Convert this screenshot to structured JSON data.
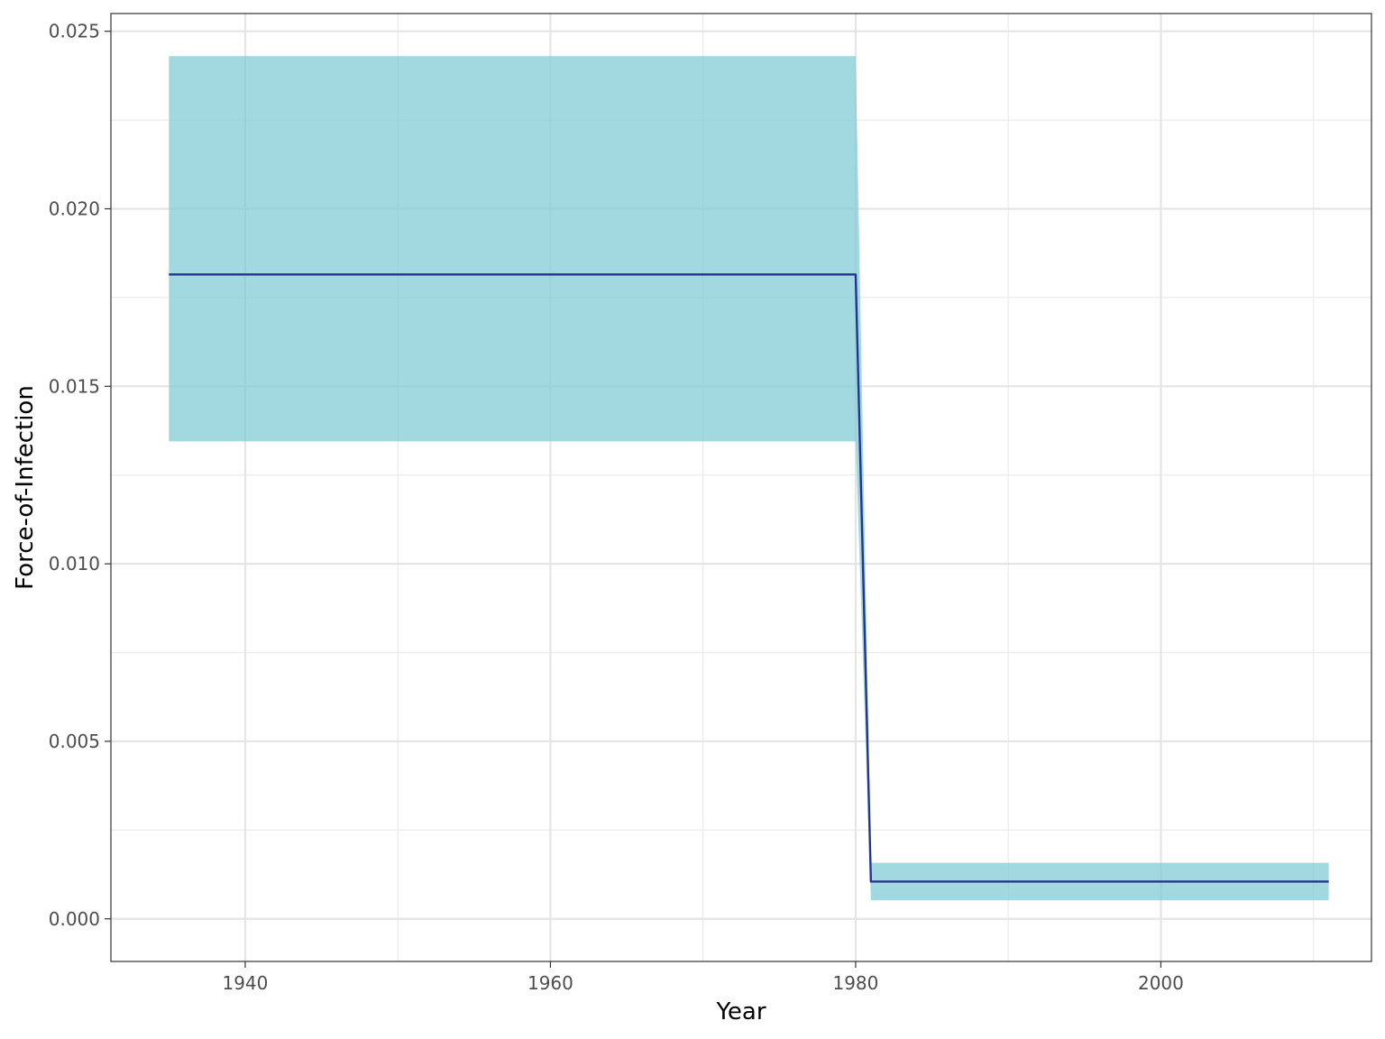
{
  "chart_data": {
    "type": "line",
    "title": "",
    "xlabel": "Year",
    "ylabel": "Force-of-Infection",
    "xlim": [
      1931.2,
      2013.8
    ],
    "ylim": [
      -0.0012,
      0.0255
    ],
    "x_ticks": [
      1940,
      1960,
      1980,
      2000
    ],
    "x_tick_labels": [
      "1940",
      "1960",
      "1980",
      "2000"
    ],
    "y_ticks": [
      0,
      0.005,
      0.01,
      0.015,
      0.02,
      0.025
    ],
    "y_tick_labels": [
      "0.000",
      "0.005",
      "0.010",
      "0.015",
      "0.020",
      "0.025"
    ],
    "grid": true,
    "legend": "none",
    "series": [
      {
        "x": [
          1935,
          1980,
          1981,
          2011
        ],
        "y": [
          0.01815,
          0.01815,
          0.00105,
          0.00105
        ],
        "color": "#24358f"
      }
    ],
    "ribbon": {
      "x": [
        1935,
        1980,
        1981,
        2011
      ],
      "lower": [
        0.01345,
        0.01345,
        0.00052,
        0.00052
      ],
      "upper": [
        0.0243,
        0.0243,
        0.00158,
        0.00158
      ],
      "color": "#7ecbd6"
    }
  }
}
